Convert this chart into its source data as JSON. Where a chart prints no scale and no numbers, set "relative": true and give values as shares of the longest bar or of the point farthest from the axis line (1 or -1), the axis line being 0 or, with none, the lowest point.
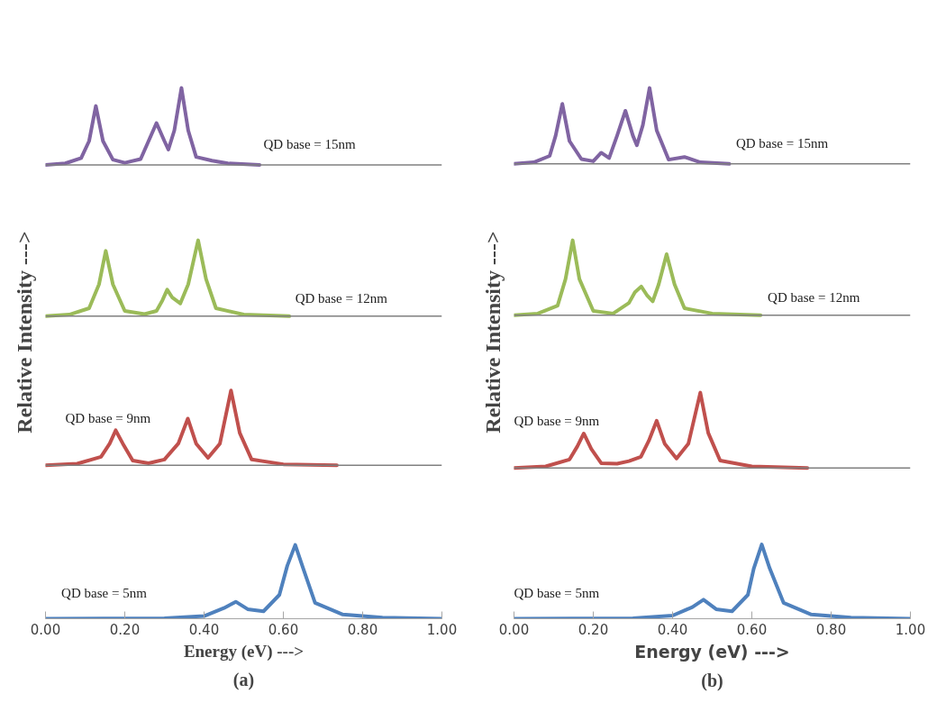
{
  "chart_data": [
    {
      "type": "line",
      "title": "(a)",
      "xlabel": "Energy (eV) --->",
      "ylabel": "Relative Intensity --->",
      "relative": true,
      "grid": false,
      "marker": "none",
      "line_style": "solid",
      "xlim": [
        0,
        1
      ],
      "xticks": [
        {
          "value": 0,
          "label": "0.00"
        },
        {
          "value": 0.2,
          "label": "0.20"
        },
        {
          "value": 0.4,
          "label": "0.40"
        },
        {
          "value": 0.6,
          "label": "0.60"
        },
        {
          "value": 0.8,
          "label": "0.80"
        },
        {
          "value": 1,
          "label": "1.00"
        }
      ],
      "ref_lines": [
        {
          "axis": "y",
          "value": 0.855,
          "color": "#808080"
        },
        {
          "axis": "y",
          "value": 0.57,
          "color": "#808080"
        },
        {
          "axis": "y",
          "value": 0.289,
          "color": "#808080"
        }
      ],
      "series": [
        {
          "name": "QD base = 15nm",
          "color": "#8064a2",
          "x": [
            0,
            0.05,
            0.09,
            0.11,
            0.127,
            0.145,
            0.17,
            0.2,
            0.24,
            0.26,
            0.28,
            0.3,
            0.31,
            0.325,
            0.343,
            0.36,
            0.38,
            0.42,
            0.46,
            0.54
          ],
          "values": [
            0.855,
            0.858,
            0.868,
            0.9,
            0.966,
            0.9,
            0.865,
            0.859,
            0.866,
            0.9,
            0.934,
            0.9,
            0.884,
            0.92,
            1.0,
            0.92,
            0.87,
            0.863,
            0.858,
            0.855
          ]
        },
        {
          "name": "QD base = 12nm",
          "color": "#9bbb59",
          "x": [
            0,
            0.06,
            0.11,
            0.135,
            0.152,
            0.17,
            0.2,
            0.25,
            0.28,
            0.295,
            0.307,
            0.32,
            0.34,
            0.36,
            0.385,
            0.405,
            0.43,
            0.5,
            0.615
          ],
          "values": [
            0.57,
            0.573,
            0.585,
            0.63,
            0.693,
            0.63,
            0.58,
            0.574,
            0.58,
            0.6,
            0.62,
            0.605,
            0.594,
            0.63,
            0.713,
            0.64,
            0.585,
            0.573,
            0.57
          ]
        },
        {
          "name": "QD base = 9nm",
          "color": "#c0504d",
          "x": [
            0,
            0.08,
            0.14,
            0.162,
            0.177,
            0.195,
            0.22,
            0.26,
            0.3,
            0.335,
            0.359,
            0.38,
            0.41,
            0.44,
            0.468,
            0.49,
            0.52,
            0.6,
            0.735
          ],
          "values": [
            0.289,
            0.292,
            0.305,
            0.33,
            0.355,
            0.33,
            0.298,
            0.293,
            0.3,
            0.33,
            0.377,
            0.33,
            0.303,
            0.33,
            0.43,
            0.35,
            0.3,
            0.291,
            0.289
          ]
        },
        {
          "name": "QD base = 5nm",
          "color": "#4f81bd",
          "x": [
            0,
            0.3,
            0.4,
            0.45,
            0.48,
            0.51,
            0.55,
            0.59,
            0.61,
            0.63,
            0.65,
            0.68,
            0.75,
            0.85,
            1.0
          ],
          "values": [
            0,
            0.001,
            0.005,
            0.02,
            0.032,
            0.018,
            0.014,
            0.045,
            0.1,
            0.139,
            0.095,
            0.03,
            0.008,
            0.002,
            0
          ]
        }
      ]
    },
    {
      "type": "line",
      "title": "(b)",
      "xlabel": "Energy (eV) --->",
      "ylabel": "Relative Intensity --->",
      "relative": true,
      "grid": false,
      "marker": "none",
      "line_style": "solid",
      "xlim": [
        0,
        1
      ],
      "xticks": [
        {
          "value": 0,
          "label": "0.00"
        },
        {
          "value": 0.2,
          "label": "0.20"
        },
        {
          "value": 0.4,
          "label": "0.40"
        },
        {
          "value": 0.6,
          "label": "0.60"
        },
        {
          "value": 0.8,
          "label": "0.80"
        },
        {
          "value": 1,
          "label": "1.00"
        }
      ],
      "ref_lines": [
        {
          "axis": "y",
          "value": 0.857,
          "color": "#808080"
        },
        {
          "axis": "y",
          "value": 0.572,
          "color": "#808080"
        },
        {
          "axis": "y",
          "value": 0.284,
          "color": "#808080"
        }
      ],
      "series": [
        {
          "name": "QD base = 15nm",
          "color": "#8064a2",
          "x": [
            0,
            0.05,
            0.09,
            0.105,
            0.122,
            0.14,
            0.17,
            0.2,
            0.22,
            0.24,
            0.26,
            0.281,
            0.3,
            0.31,
            0.325,
            0.342,
            0.36,
            0.39,
            0.43,
            0.47,
            0.543
          ],
          "values": [
            0.857,
            0.86,
            0.872,
            0.91,
            0.97,
            0.9,
            0.866,
            0.862,
            0.878,
            0.868,
            0.91,
            0.957,
            0.91,
            0.892,
            0.93,
            1.0,
            0.92,
            0.865,
            0.87,
            0.86,
            0.857
          ]
        },
        {
          "name": "QD base = 12nm",
          "color": "#9bbb59",
          "x": [
            0,
            0.06,
            0.11,
            0.13,
            0.148,
            0.165,
            0.2,
            0.25,
            0.29,
            0.305,
            0.321,
            0.335,
            0.35,
            0.365,
            0.385,
            0.405,
            0.43,
            0.5,
            0.622
          ],
          "values": [
            0.572,
            0.575,
            0.59,
            0.64,
            0.713,
            0.64,
            0.58,
            0.575,
            0.595,
            0.615,
            0.626,
            0.61,
            0.598,
            0.63,
            0.687,
            0.63,
            0.585,
            0.575,
            0.572
          ]
        },
        {
          "name": "QD base = 9nm",
          "color": "#c0504d",
          "x": [
            0,
            0.08,
            0.14,
            0.16,
            0.176,
            0.195,
            0.22,
            0.26,
            0.29,
            0.32,
            0.34,
            0.36,
            0.38,
            0.41,
            0.44,
            0.47,
            0.49,
            0.52,
            0.6,
            0.74
          ],
          "values": [
            0.284,
            0.287,
            0.3,
            0.325,
            0.349,
            0.32,
            0.293,
            0.292,
            0.297,
            0.305,
            0.335,
            0.373,
            0.33,
            0.302,
            0.33,
            0.426,
            0.35,
            0.298,
            0.287,
            0.284
          ]
        },
        {
          "name": "QD base = 5nm",
          "color": "#4f81bd",
          "x": [
            0,
            0.3,
            0.4,
            0.45,
            0.478,
            0.51,
            0.55,
            0.59,
            0.605,
            0.625,
            0.645,
            0.68,
            0.75,
            0.85,
            1.0
          ],
          "values": [
            0,
            0.001,
            0.006,
            0.022,
            0.036,
            0.018,
            0.014,
            0.045,
            0.095,
            0.14,
            0.095,
            0.03,
            0.008,
            0.002,
            0
          ]
        }
      ]
    }
  ]
}
